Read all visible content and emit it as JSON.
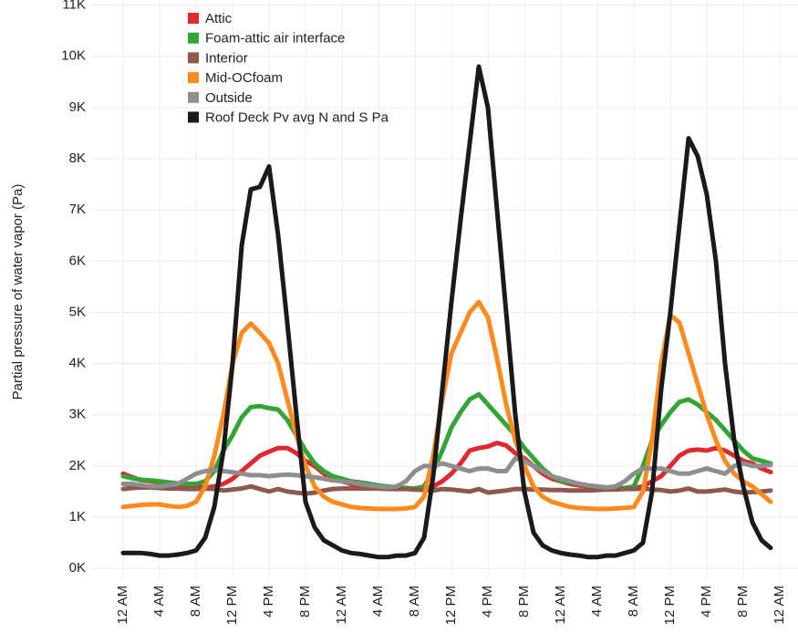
{
  "chart_data": {
    "type": "line",
    "y_label": "Partial pressure of water vapor (Pa)",
    "legend": "top-left",
    "grid": true,
    "xlim": [
      -3.5,
      74
    ],
    "ylim": [
      -300,
      11100
    ],
    "xticks": [
      {
        "value": 0,
        "label": "12 AM"
      },
      {
        "value": 4,
        "label": "4 AM"
      },
      {
        "value": 8,
        "label": "8 AM"
      },
      {
        "value": 12,
        "label": "12 PM"
      },
      {
        "value": 16,
        "label": "4 PM"
      },
      {
        "value": 20,
        "label": "8 PM"
      },
      {
        "value": 24,
        "label": "12 AM"
      },
      {
        "value": 28,
        "label": "4 AM"
      },
      {
        "value": 32,
        "label": "8 AM"
      },
      {
        "value": 36,
        "label": "12 PM"
      },
      {
        "value": 40,
        "label": "4 PM"
      },
      {
        "value": 44,
        "label": "8 PM"
      },
      {
        "value": 48,
        "label": "12 AM"
      },
      {
        "value": 52,
        "label": "4 AM"
      },
      {
        "value": 56,
        "label": "8 AM"
      },
      {
        "value": 60,
        "label": "12 PM"
      },
      {
        "value": 64,
        "label": "4 PM"
      },
      {
        "value": 68,
        "label": "8 PM"
      },
      {
        "value": 72,
        "label": "12 AM"
      }
    ],
    "yticks": [
      {
        "value": 0,
        "label": "0K"
      },
      {
        "value": 1000,
        "label": "1K"
      },
      {
        "value": 2000,
        "label": "2K"
      },
      {
        "value": 3000,
        "label": "3K"
      },
      {
        "value": 4000,
        "label": "4K"
      },
      {
        "value": 5000,
        "label": "5K"
      },
      {
        "value": 6000,
        "label": "6K"
      },
      {
        "value": 7000,
        "label": "7K"
      },
      {
        "value": 8000,
        "label": "8K"
      },
      {
        "value": 9000,
        "label": "9K"
      },
      {
        "value": 10000,
        "label": "10K"
      },
      {
        "value": 11000,
        "label": "11K"
      }
    ],
    "x": [
      0,
      1,
      2,
      3,
      4,
      5,
      6,
      7,
      8,
      9,
      10,
      11,
      12,
      13,
      14,
      15,
      16,
      17,
      18,
      19,
      20,
      21,
      22,
      23,
      24,
      25,
      26,
      27,
      28,
      29,
      30,
      31,
      32,
      33,
      34,
      35,
      36,
      37,
      38,
      39,
      40,
      41,
      42,
      43,
      44,
      45,
      46,
      47,
      48,
      49,
      50,
      51,
      52,
      53,
      54,
      55,
      56,
      57,
      58,
      59,
      60,
      61,
      62,
      63,
      64,
      65,
      66,
      67,
      68,
      69,
      70,
      71
    ],
    "series": [
      {
        "name": "Attic",
        "color": "#e0282e",
        "values": [
          1850,
          1780,
          1720,
          1700,
          1680,
          1650,
          1620,
          1600,
          1600,
          1580,
          1600,
          1650,
          1750,
          1900,
          2050,
          2200,
          2280,
          2350,
          2350,
          2250,
          2100,
          2000,
          1850,
          1750,
          1700,
          1650,
          1620,
          1600,
          1580,
          1570,
          1560,
          1560,
          1550,
          1560,
          1600,
          1700,
          1850,
          2050,
          2300,
          2350,
          2380,
          2450,
          2400,
          2250,
          2150,
          2000,
          1850,
          1750,
          1700,
          1650,
          1620,
          1600,
          1580,
          1570,
          1560,
          1560,
          1570,
          1600,
          1700,
          1800,
          2000,
          2200,
          2300,
          2320,
          2300,
          2350,
          2300,
          2200,
          2100,
          2050,
          1950,
          1880
        ]
      },
      {
        "name": "Foam-attic air interface",
        "color": "#33a537",
        "values": [
          1800,
          1760,
          1730,
          1720,
          1700,
          1680,
          1660,
          1650,
          1650,
          1700,
          1900,
          2300,
          2600,
          2950,
          3150,
          3170,
          3130,
          3100,
          2900,
          2600,
          2300,
          2050,
          1900,
          1800,
          1750,
          1700,
          1680,
          1650,
          1620,
          1600,
          1580,
          1570,
          1560,
          1600,
          1900,
          2300,
          2750,
          3050,
          3300,
          3400,
          3200,
          3000,
          2800,
          2600,
          2350,
          2150,
          1950,
          1800,
          1700,
          1680,
          1650,
          1620,
          1600,
          1580,
          1570,
          1570,
          1600,
          2000,
          2500,
          2800,
          3050,
          3250,
          3300,
          3200,
          3050,
          2900,
          2700,
          2500,
          2300,
          2150,
          2100,
          2050
        ]
      },
      {
        "name": "Interior",
        "color": "#8b5a4c",
        "values": [
          1550,
          1570,
          1580,
          1580,
          1570,
          1560,
          1560,
          1550,
          1550,
          1560,
          1550,
          1520,
          1540,
          1560,
          1600,
          1550,
          1500,
          1550,
          1500,
          1480,
          1460,
          1480,
          1520,
          1550,
          1560,
          1560,
          1560,
          1560,
          1560,
          1550,
          1550,
          1550,
          1540,
          1530,
          1520,
          1550,
          1540,
          1520,
          1500,
          1550,
          1480,
          1500,
          1520,
          1550,
          1550,
          1540,
          1540,
          1530,
          1530,
          1520,
          1520,
          1520,
          1530,
          1540,
          1540,
          1550,
          1550,
          1560,
          1540,
          1530,
          1500,
          1520,
          1560,
          1500,
          1500,
          1520,
          1540,
          1500,
          1480,
          1490,
          1500,
          1520
        ]
      },
      {
        "name": "Mid-OCfoam",
        "color": "#ff8a1c",
        "values": [
          1200,
          1220,
          1240,
          1250,
          1250,
          1220,
          1200,
          1220,
          1300,
          1600,
          2200,
          3000,
          4000,
          4600,
          4780,
          4600,
          4400,
          4000,
          3300,
          2600,
          2000,
          1600,
          1400,
          1300,
          1250,
          1200,
          1180,
          1170,
          1160,
          1160,
          1160,
          1170,
          1200,
          1400,
          2200,
          3300,
          4200,
          4600,
          5000,
          5200,
          4900,
          4100,
          3200,
          2500,
          2000,
          1600,
          1400,
          1300,
          1250,
          1200,
          1180,
          1170,
          1160,
          1160,
          1170,
          1180,
          1200,
          1500,
          2500,
          4000,
          4950,
          4800,
          4200,
          3600,
          3000,
          2500,
          2100,
          1850,
          1700,
          1600,
          1450,
          1300
        ]
      },
      {
        "name": "Outside",
        "color": "#8e8e8e",
        "values": [
          1650,
          1650,
          1620,
          1600,
          1600,
          1620,
          1650,
          1750,
          1850,
          1900,
          1920,
          1900,
          1880,
          1850,
          1820,
          1820,
          1800,
          1820,
          1830,
          1820,
          1800,
          1780,
          1750,
          1720,
          1700,
          1680,
          1650,
          1620,
          1600,
          1580,
          1600,
          1700,
          1900,
          2000,
          2000,
          2050,
          2000,
          1950,
          1900,
          1950,
          1950,
          1900,
          1900,
          2150,
          2100,
          2000,
          1900,
          1800,
          1750,
          1700,
          1650,
          1620,
          1600,
          1580,
          1600,
          1700,
          1850,
          1950,
          1950,
          1950,
          1900,
          1850,
          1850,
          1900,
          1950,
          1900,
          1850,
          2000,
          2050,
          2000,
          2000,
          2020
        ]
      },
      {
        "name": "Roof Deck Pv avg N and S Pa",
        "color": "#1a1a1a",
        "values": [
          300,
          300,
          300,
          280,
          250,
          250,
          270,
          300,
          350,
          600,
          1200,
          2300,
          4000,
          6300,
          7400,
          7450,
          7850,
          6500,
          4800,
          3000,
          1300,
          800,
          550,
          450,
          350,
          300,
          280,
          250,
          220,
          220,
          250,
          250,
          300,
          600,
          1800,
          3500,
          5200,
          6800,
          8300,
          9800,
          9000,
          7000,
          5000,
          3000,
          1500,
          700,
          450,
          350,
          300,
          270,
          250,
          220,
          220,
          250,
          250,
          300,
          350,
          500,
          1500,
          3500,
          5000,
          6700,
          8400,
          8050,
          7300,
          6000,
          4000,
          2500,
          1600,
          900,
          550,
          400
        ]
      }
    ]
  }
}
